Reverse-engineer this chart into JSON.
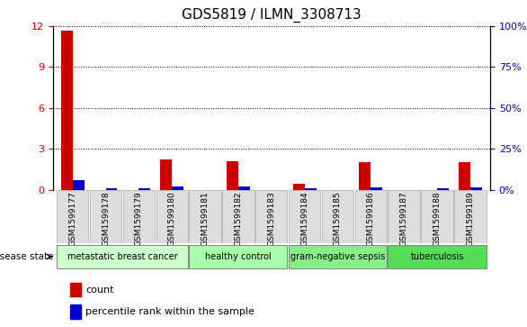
{
  "title": "GDS5819 / ILMN_3308713",
  "samples": [
    "GSM1599177",
    "GSM1599178",
    "GSM1599179",
    "GSM1599180",
    "GSM1599181",
    "GSM1599182",
    "GSM1599183",
    "GSM1599184",
    "GSM1599185",
    "GSM1599186",
    "GSM1599187",
    "GSM1599188",
    "GSM1599189"
  ],
  "count": [
    11.7,
    0.0,
    0.0,
    2.2,
    0.0,
    2.1,
    0.0,
    0.4,
    0.0,
    2.0,
    0.0,
    0.0,
    2.0
  ],
  "percentile": [
    5.8,
    0.9,
    0.9,
    1.8,
    0.0,
    1.7,
    0.0,
    0.9,
    0.0,
    1.4,
    0.0,
    0.9,
    1.4
  ],
  "ylim_left": [
    0,
    12
  ],
  "ylim_right": [
    0,
    100
  ],
  "yticks_left": [
    0,
    3,
    6,
    9,
    12
  ],
  "yticks_right": [
    0,
    25,
    50,
    75,
    100
  ],
  "groups": [
    {
      "label": "metastatic breast cancer",
      "start": 0,
      "end": 3,
      "color": "#ccffcc"
    },
    {
      "label": "healthy control",
      "start": 4,
      "end": 6,
      "color": "#aaffaa"
    },
    {
      "label": "gram-negative sepsis",
      "start": 7,
      "end": 9,
      "color": "#88ee88"
    },
    {
      "label": "tuberculosis",
      "start": 10,
      "end": 12,
      "color": "#55dd55"
    }
  ],
  "group_row_color": "#dddddd",
  "bar_color_count": "#cc0000",
  "bar_color_percentile": "#0000cc",
  "bar_width": 0.35,
  "disease_state_label": "disease state",
  "legend_count": "count",
  "legend_percentile": "percentile rank within the sample",
  "bg_color": "#ffffff",
  "plot_bg_color": "#ffffff",
  "grid_color": "#000000",
  "left_label_color": "#cc0000",
  "right_label_color": "#0000cc"
}
